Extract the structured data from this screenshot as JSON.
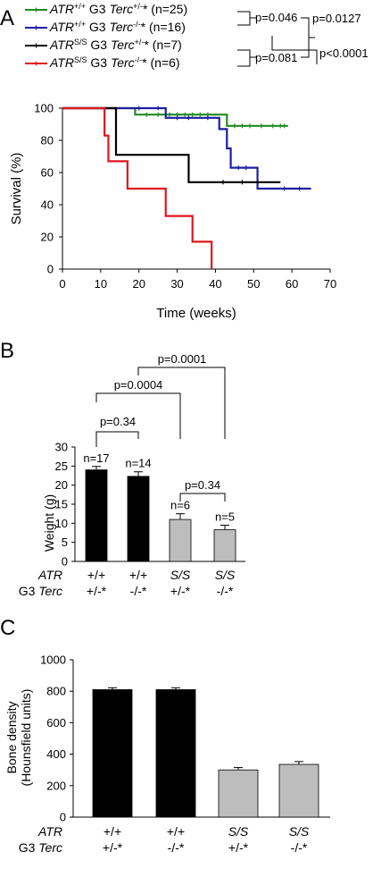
{
  "chart_data": [
    {
      "panel": "A",
      "type": "line",
      "xlabel": "Time (weeks)",
      "ylabel": "Survival (%)",
      "xlim": [
        0,
        70
      ],
      "ylim": [
        0,
        100
      ],
      "xticks": [
        0,
        10,
        20,
        30,
        40,
        50,
        60,
        70
      ],
      "yticks": [
        0,
        20,
        40,
        60,
        80,
        100
      ],
      "grid": false,
      "legend_position": "top-left",
      "series": [
        {
          "name": "ATR+/+ G3 Terc+/-* (n=25)",
          "legend": {
            "gene": "ATR",
            "gene_sup": "+/+",
            "mid": " G3 ",
            "terc": "Terc",
            "terc_sup": "+/-",
            "tail": "* (n=25)"
          },
          "color": "#228B22",
          "step_x": [
            0,
            19,
            43,
            59
          ],
          "step_y": [
            100,
            96,
            89,
            89
          ],
          "censor_x": [
            22,
            25,
            28,
            30,
            32,
            34,
            36,
            38,
            45,
            47,
            49,
            52,
            55,
            57,
            58
          ],
          "censor_y": [
            96,
            96,
            96,
            96,
            96,
            96,
            96,
            96,
            89,
            89,
            89,
            89,
            89,
            89,
            89
          ]
        },
        {
          "name": "ATR+/+ G3 Terc-/-* (n=16)",
          "legend": {
            "gene": "ATR",
            "gene_sup": "+/+",
            "mid": " G3 ",
            "terc": "Terc",
            "terc_sup": "-/-",
            "tail": "* (n=16)"
          },
          "color": "#1F1F9F",
          "step_x": [
            0,
            27,
            36,
            41,
            43,
            44,
            51,
            65
          ],
          "step_y": [
            100,
            94,
            94,
            87,
            75,
            63,
            50,
            50
          ],
          "censor_x": [
            20,
            25,
            30,
            33,
            38,
            46,
            48,
            58,
            62
          ],
          "censor_y": [
            100,
            100,
            94,
            94,
            94,
            63,
            63,
            50,
            50
          ]
        },
        {
          "name": "ATRS/S G3 Terc+/-* (n=7)",
          "legend": {
            "gene": "ATR",
            "gene_sup": "S/S",
            "mid": " G3 ",
            "terc": "Terc",
            "terc_sup": "+/-",
            "tail": "* (n=7)"
          },
          "color": "#000000",
          "step_x": [
            0,
            14,
            33,
            57
          ],
          "step_y": [
            100,
            71,
            54,
            54
          ],
          "censor_x": [
            42,
            47
          ],
          "censor_y": [
            54,
            54
          ]
        },
        {
          "name": "ATRS/S G3 Terc-/-* (n=6)",
          "legend": {
            "gene": "ATR",
            "gene_sup": "S/S",
            "mid": " G3 ",
            "terc": "Terc",
            "terc_sup": "-/-",
            "tail": "* (n=6)"
          },
          "color": "#E0161B",
          "step_x": [
            0,
            11,
            12,
            17,
            27,
            34,
            39
          ],
          "step_y": [
            100,
            83,
            67,
            50,
            33,
            17,
            0
          ],
          "censor_x": [],
          "censor_y": []
        }
      ],
      "pvalues": [
        "p=0.046",
        "p=0.081",
        "p=0.0127",
        "p<0.0001"
      ]
    },
    {
      "panel": "B",
      "type": "bar",
      "ylabel": "Weight (g)",
      "ylim": [
        0,
        30
      ],
      "yticks": [
        0,
        5,
        10,
        15,
        20,
        25,
        30
      ],
      "values": [
        24,
        22.3,
        11,
        8.3
      ],
      "errors": [
        0.9,
        1.2,
        1.5,
        1.2
      ],
      "n_labels": [
        "n=17",
        "n=14",
        "n=6",
        "n=5"
      ],
      "bar_colors": [
        "#000000",
        "#000000",
        "#BDBDBD",
        "#BDBDBD"
      ],
      "pvalues": [
        "p=0.34",
        "p=0.0004",
        "p=0.0001",
        "p=0.34"
      ]
    },
    {
      "panel": "C",
      "type": "bar",
      "ylabel_line1": "Bone density",
      "ylabel_line2": "(Hounsfield units)",
      "ylim": [
        0,
        1000
      ],
      "yticks": [
        0,
        200,
        400,
        600,
        800,
        1000
      ],
      "values": [
        810,
        810,
        300,
        335
      ],
      "errors": [
        12,
        12,
        15,
        18
      ],
      "bar_colors": [
        "#000000",
        "#000000",
        "#BDBDBD",
        "#BDBDBD"
      ]
    }
  ],
  "genotype_labels": {
    "row1": "ATR",
    "row2_prefix": "G3 ",
    "row2_gene": "Terc",
    "atr": [
      "+/+",
      "+/+",
      "S/S",
      "S/S"
    ],
    "terc": [
      "+/-*",
      "-/-*",
      "+/-*",
      "-/-*"
    ]
  },
  "panel_labels": [
    "A",
    "B",
    "C"
  ]
}
